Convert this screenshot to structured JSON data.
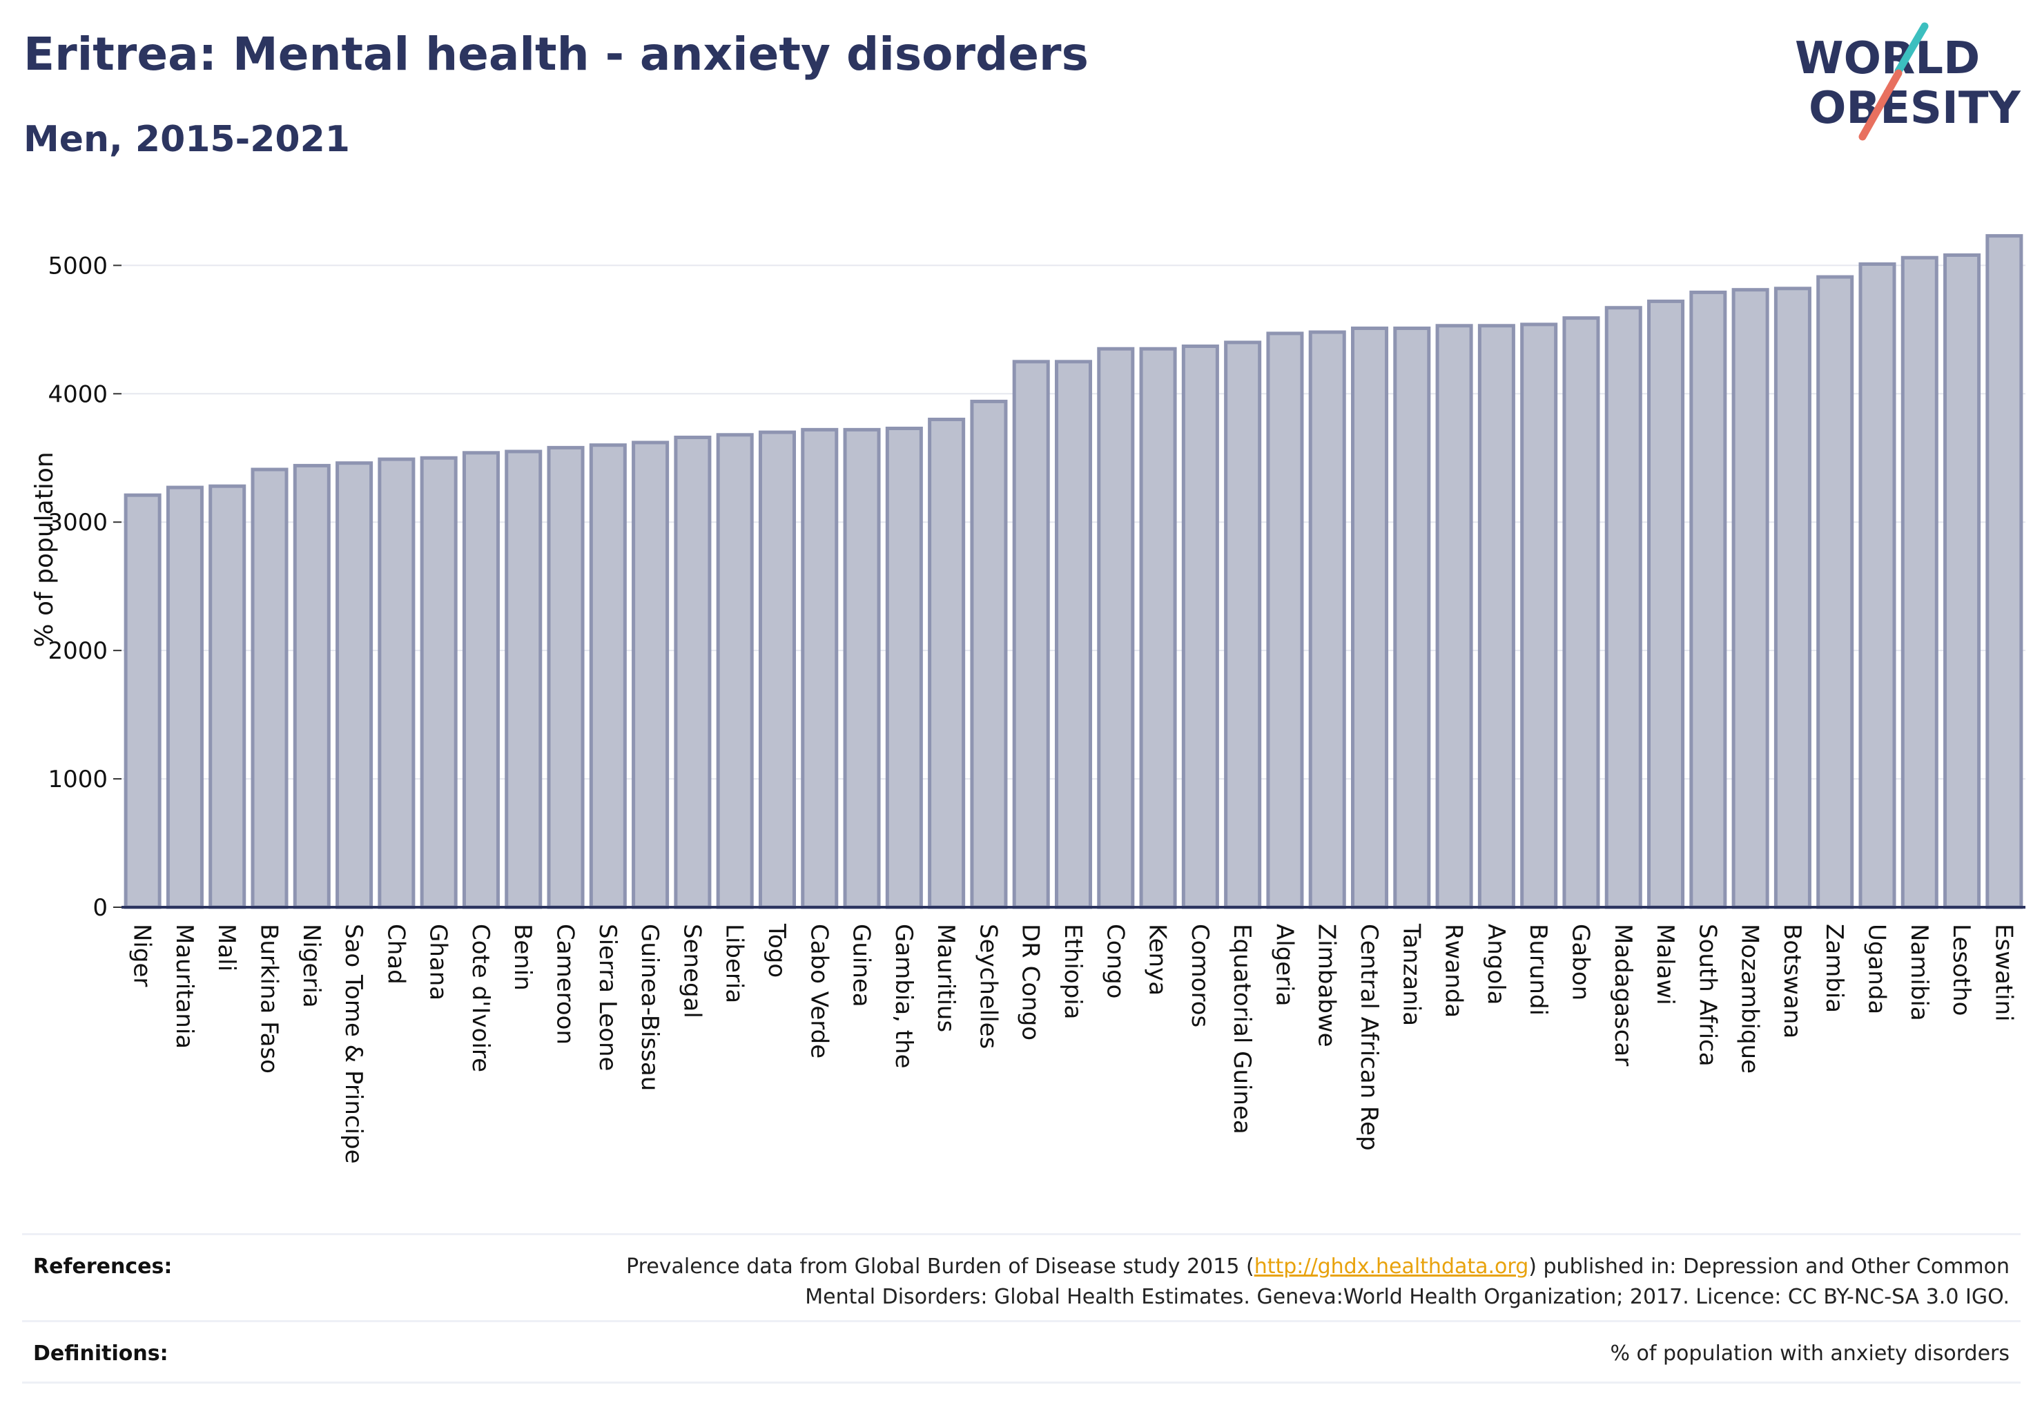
{
  "header": {
    "title": "Eritrea: Mental health - anxiety disorders",
    "subtitle": "Men, 2015-2021"
  },
  "logo": {
    "line1": "WORLD",
    "line2": "OBESITY"
  },
  "colors": {
    "title": "#2c3560",
    "bar_fill": "#bcc0cf",
    "bar_stroke": "#8e94b1",
    "grid": "#e6e8ef",
    "axis": "#2c3560",
    "logo_text": "#2c3560",
    "logo_teal": "#3cbfbf",
    "logo_coral": "#e8705f",
    "link": "#e8a20c"
  },
  "chart_data": {
    "type": "bar",
    "ylabel": "% of population",
    "ylim": [
      0,
      5400
    ],
    "yticks": [
      0,
      1000,
      2000,
      3000,
      4000,
      5000
    ],
    "grid": true,
    "categories": [
      "Niger",
      "Mauritania",
      "Mali",
      "Burkina Faso",
      "Nigeria",
      "Sao Tome & Principe",
      "Chad",
      "Ghana",
      "Cote d'Ivoire",
      "Benin",
      "Cameroon",
      "Sierra Leone",
      "Guinea-Bissau",
      "Senegal",
      "Liberia",
      "Togo",
      "Cabo Verde",
      "Guinea",
      "Gambia, the",
      "Mauritius",
      "Seychelles",
      "DR Congo",
      "Ethiopia",
      "Congo",
      "Kenya",
      "Comoros",
      "Equatorial Guinea",
      "Algeria",
      "Zimbabwe",
      "Central African Rep",
      "Tanzania",
      "Rwanda",
      "Angola",
      "Burundi",
      "Gabon",
      "Madagascar",
      "Malawi",
      "South Africa",
      "Mozambique",
      "Botswana",
      "Zambia",
      "Uganda",
      "Namibia",
      "Lesotho",
      "Eswatini"
    ],
    "values": [
      3210,
      3270,
      3280,
      3410,
      3440,
      3460,
      3490,
      3500,
      3540,
      3550,
      3580,
      3600,
      3620,
      3660,
      3680,
      3700,
      3720,
      3720,
      3730,
      3800,
      3940,
      4250,
      4250,
      4350,
      4350,
      4370,
      4400,
      4470,
      4480,
      4510,
      4510,
      4530,
      4530,
      4540,
      4590,
      4670,
      4720,
      4790,
      4810,
      4820,
      4910,
      5010,
      5060,
      5080,
      5230
    ]
  },
  "footer": {
    "references_label": "References:",
    "references_pre": "Prevalence data from Global Burden of Disease study 2015 (",
    "references_link": "http://ghdx.healthdata.org",
    "references_post": ") published in: Depression and Other Common",
    "references_line2": "Mental Disorders: Global Health Estimates. Geneva:World Health Organization; 2017. Licence: CC BY-NC-SA 3.0 IGO.",
    "definitions_label": "Definitions:",
    "definitions_text": "% of population with anxiety disorders"
  }
}
